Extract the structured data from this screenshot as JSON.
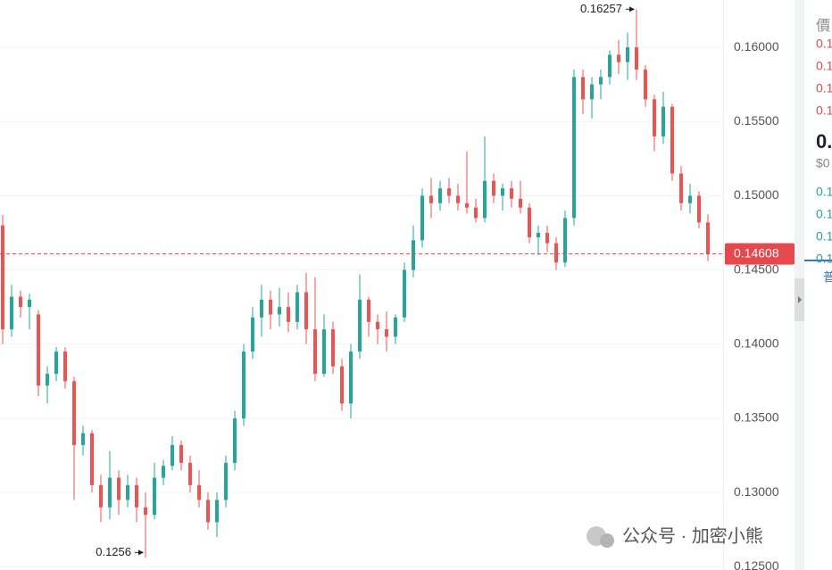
{
  "chart_data": {
    "type": "candlestick",
    "up_color": "#26a69a",
    "down_color": "#ef5350",
    "open": [
      0.148,
      0.141,
      0.1432,
      0.1425,
      0.142,
      0.1372,
      0.138,
      0.1395,
      0.1375,
      0.1332,
      0.134,
      0.1305,
      0.129,
      0.131,
      0.1295,
      0.1305,
      0.129,
      0.1285,
      0.131,
      0.1318,
      0.1332,
      0.132,
      0.1305,
      0.1295,
      0.128,
      0.1295,
      0.132,
      0.135,
      0.1395,
      0.1418,
      0.143,
      0.142,
      0.1425,
      0.1415,
      0.1435,
      0.141,
      0.138,
      0.141,
      0.1385,
      0.136,
      0.1395,
      0.143,
      0.1415,
      0.141,
      0.1405,
      0.1418,
      0.145,
      0.147,
      0.15,
      0.1495,
      0.1505,
      0.15,
      0.1495,
      0.1492,
      0.1485,
      0.151,
      0.15,
      0.1505,
      0.1498,
      0.1492,
      0.1472,
      0.1475,
      0.1468,
      0.1455,
      0.1485,
      0.158,
      0.1565,
      0.1575,
      0.158,
      0.1595,
      0.159,
      0.16,
      0.1585,
      0.1565,
      0.154,
      0.156,
      0.1515,
      0.1495,
      0.15,
      0.1482
    ],
    "high": [
      0.1487,
      0.144,
      0.1436,
      0.1434,
      0.1423,
      0.1385,
      0.1398,
      0.1398,
      0.1378,
      0.1345,
      0.1342,
      0.1312,
      0.1328,
      0.1315,
      0.1312,
      0.131,
      0.13,
      0.132,
      0.1322,
      0.1338,
      0.1335,
      0.1325,
      0.1315,
      0.13,
      0.13,
      0.1325,
      0.1355,
      0.14,
      0.1425,
      0.144,
      0.1436,
      0.1438,
      0.1435,
      0.144,
      0.1448,
      0.1445,
      0.142,
      0.1415,
      0.139,
      0.14,
      0.1447,
      0.1432,
      0.142,
      0.1422,
      0.142,
      0.1455,
      0.148,
      0.1505,
      0.1512,
      0.151,
      0.1512,
      0.1508,
      0.153,
      0.1498,
      0.154,
      0.1515,
      0.1508,
      0.151,
      0.151,
      0.1495,
      0.148,
      0.148,
      0.1472,
      0.149,
      0.1585,
      0.1585,
      0.158,
      0.1585,
      0.1598,
      0.1605,
      0.161,
      0.16257,
      0.1588,
      0.1568,
      0.157,
      0.1562,
      0.152,
      0.1508,
      0.1503,
      0.14875
    ],
    "low": [
      0.14,
      0.1405,
      0.1418,
      0.141,
      0.1365,
      0.136,
      0.1375,
      0.137,
      0.1295,
      0.1325,
      0.13,
      0.128,
      0.1282,
      0.1285,
      0.129,
      0.128,
      0.1256,
      0.1282,
      0.1305,
      0.1315,
      0.1315,
      0.13,
      0.129,
      0.1275,
      0.127,
      0.129,
      0.1315,
      0.1345,
      0.139,
      0.1405,
      0.141,
      0.1412,
      0.1408,
      0.141,
      0.14,
      0.1375,
      0.1378,
      0.138,
      0.1355,
      0.135,
      0.139,
      0.1405,
      0.14,
      0.1395,
      0.14,
      0.1415,
      0.1445,
      0.1465,
      0.1485,
      0.149,
      0.1495,
      0.149,
      0.1488,
      0.1482,
      0.1482,
      0.1495,
      0.149,
      0.1492,
      0.1488,
      0.1468,
      0.146,
      0.1462,
      0.145,
      0.1452,
      0.148,
      0.1555,
      0.1552,
      0.1565,
      0.1575,
      0.1582,
      0.1578,
      0.1578,
      0.156,
      0.153,
      0.1535,
      0.151,
      0.149,
      0.1488,
      0.1478,
      0.1456
    ],
    "close": [
      0.141,
      0.1432,
      0.1425,
      0.143,
      0.1372,
      0.138,
      0.1395,
      0.1375,
      0.1332,
      0.134,
      0.1305,
      0.129,
      0.131,
      0.1295,
      0.1305,
      0.129,
      0.1285,
      0.131,
      0.1318,
      0.1332,
      0.132,
      0.1305,
      0.1295,
      0.128,
      0.1295,
      0.132,
      0.135,
      0.1395,
      0.1418,
      0.143,
      0.142,
      0.1425,
      0.1415,
      0.1435,
      0.141,
      0.138,
      0.141,
      0.1385,
      0.136,
      0.1395,
      0.143,
      0.1415,
      0.141,
      0.1405,
      0.1418,
      0.145,
      0.147,
      0.15,
      0.1495,
      0.1505,
      0.15,
      0.1495,
      0.1492,
      0.1485,
      0.151,
      0.15,
      0.1505,
      0.1498,
      0.1492,
      0.1472,
      0.1475,
      0.1468,
      0.1455,
      0.1485,
      0.158,
      0.1565,
      0.1575,
      0.158,
      0.1595,
      0.159,
      0.16,
      0.1585,
      0.1565,
      0.154,
      0.156,
      0.1515,
      0.1495,
      0.15,
      0.1482,
      0.14608
    ],
    "ylim": [
      0.12478,
      0.16319
    ],
    "yticks": [
      {
        "value": 0.125,
        "label": "0.12500"
      },
      {
        "value": 0.13,
        "label": "0.13000"
      },
      {
        "value": 0.135,
        "label": "0.13500"
      },
      {
        "value": 0.14,
        "label": "0.14000"
      },
      {
        "value": 0.145,
        "label": "0.14500"
      },
      {
        "value": 0.15,
        "label": "0.15000"
      },
      {
        "value": 0.155,
        "label": "0.15500"
      },
      {
        "value": 0.16,
        "label": "0.16000"
      }
    ],
    "grid": true,
    "last_price": {
      "value": 0.14608,
      "label": "0.14608",
      "color": "#e5484d"
    },
    "annotations": [
      {
        "value": 0.16257,
        "label": "0.16257",
        "at": "high"
      },
      {
        "value": 0.1256,
        "label": "0.1256",
        "at": "low"
      }
    ]
  },
  "order_book": {
    "header": "價",
    "asks": [
      "0.1",
      "0.1",
      "0.1",
      "0.1"
    ],
    "price": "0.",
    "usd": "$0",
    "bids": [
      "0.1",
      "0.1",
      "0.1",
      "0.1"
    ],
    "footer": "普"
  },
  "watermark": "公众号 · 加密小熊"
}
